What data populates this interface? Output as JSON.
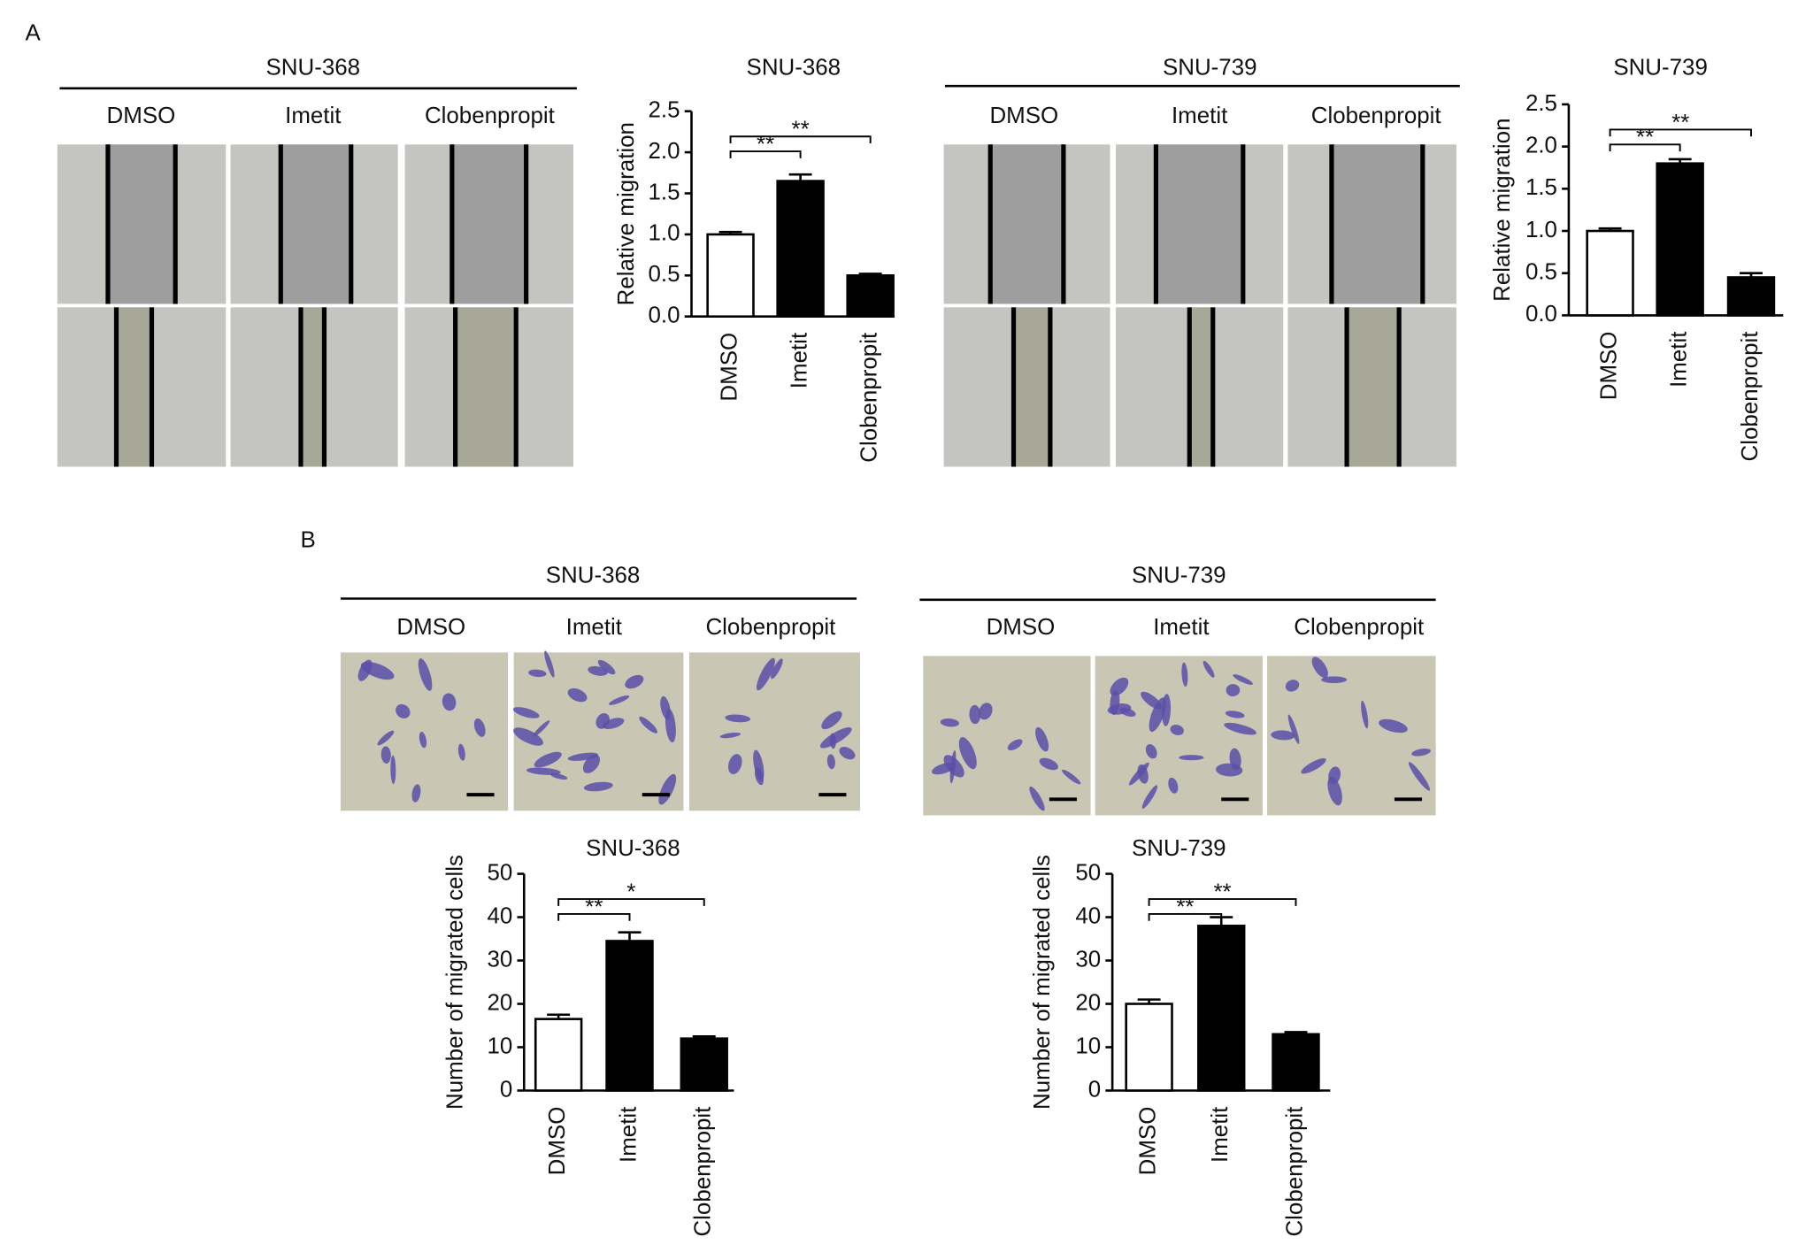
{
  "panel_labels": [
    "A",
    "B"
  ],
  "image_groups": [
    {
      "title": "SNU-368",
      "labels": [
        "DMSO",
        "Imetit",
        "Clobenpropit"
      ]
    },
    {
      "title": "SNU-739",
      "labels": [
        "DMSO",
        "Imetit",
        "Clobenpropit"
      ]
    },
    {
      "title": "SNU-368",
      "labels": [
        "DMSO",
        "Imetit",
        "Clobenpropit"
      ]
    },
    {
      "title": "SNU-739",
      "labels": [
        "DMSO",
        "Imetit",
        "Clobenpropit"
      ]
    }
  ],
  "chart_data": [
    {
      "type": "bar",
      "title": "SNU-368",
      "ylabel": "Relative migration",
      "categories": [
        "DMSO",
        "Imetit",
        "Clobenpropit"
      ],
      "values": [
        1.0,
        1.65,
        0.5
      ],
      "errors": [
        0.03,
        0.08,
        0.02
      ],
      "colors": [
        "#ffffff",
        "#000000",
        "#000000"
      ],
      "ylim": [
        0,
        2.5
      ],
      "yticks": [
        {
          "value": 0,
          "label": "0.0"
        },
        0.5,
        {
          "value": 1,
          "label": "1.0"
        },
        1.5,
        {
          "value": 2,
          "label": "2.0"
        },
        2.5
      ],
      "significance": [
        {
          "label": "**",
          "from": 0,
          "to": 1
        },
        {
          "label": "**",
          "from": 0,
          "to": 2
        }
      ]
    },
    {
      "type": "bar",
      "title": "SNU-739",
      "ylabel": "Relative migration",
      "categories": [
        "DMSO",
        "Imetit",
        "Clobenpropit"
      ],
      "values": [
        1.0,
        1.8,
        0.45
      ],
      "errors": [
        0.03,
        0.05,
        0.05
      ],
      "colors": [
        "#ffffff",
        "#000000",
        "#000000"
      ],
      "ylim": [
        0,
        2.5
      ],
      "yticks": [
        {
          "value": 0,
          "label": "0.0"
        },
        0.5,
        {
          "value": 1,
          "label": "1.0"
        },
        1.5,
        {
          "value": 2,
          "label": "2.0"
        },
        2.5
      ],
      "significance": [
        {
          "label": "**",
          "from": 0,
          "to": 1
        },
        {
          "label": "**",
          "from": 0,
          "to": 2
        }
      ]
    },
    {
      "type": "bar",
      "title": "SNU-368",
      "ylabel": "Number of migrated cells",
      "categories": [
        "DMSO",
        "Imetit",
        "Clobenpropit"
      ],
      "values": [
        16.5,
        34.5,
        12
      ],
      "errors": [
        1,
        2,
        0.5
      ],
      "colors": [
        "#ffffff",
        "#000000",
        "#000000"
      ],
      "ylim": [
        0,
        50
      ],
      "yticks": [
        0,
        10,
        20,
        30,
        40,
        50
      ],
      "significance": [
        {
          "label": "**",
          "from": 0,
          "to": 1
        },
        {
          "label": "*",
          "from": 0,
          "to": 2
        }
      ]
    },
    {
      "type": "bar",
      "title": "SNU-739",
      "ylabel": "Number of migrated cells",
      "categories": [
        "DMSO",
        "Imetit",
        "Clobenpropit"
      ],
      "values": [
        20,
        38,
        13
      ],
      "errors": [
        1,
        2,
        0.5
      ],
      "colors": [
        "#ffffff",
        "#000000",
        "#000000"
      ],
      "ylim": [
        0,
        50
      ],
      "yticks": [
        0,
        10,
        20,
        30,
        40,
        50
      ],
      "significance": [
        {
          "label": "**",
          "from": 0,
          "to": 1
        },
        {
          "label": "**",
          "from": 0,
          "to": 2
        }
      ]
    }
  ]
}
